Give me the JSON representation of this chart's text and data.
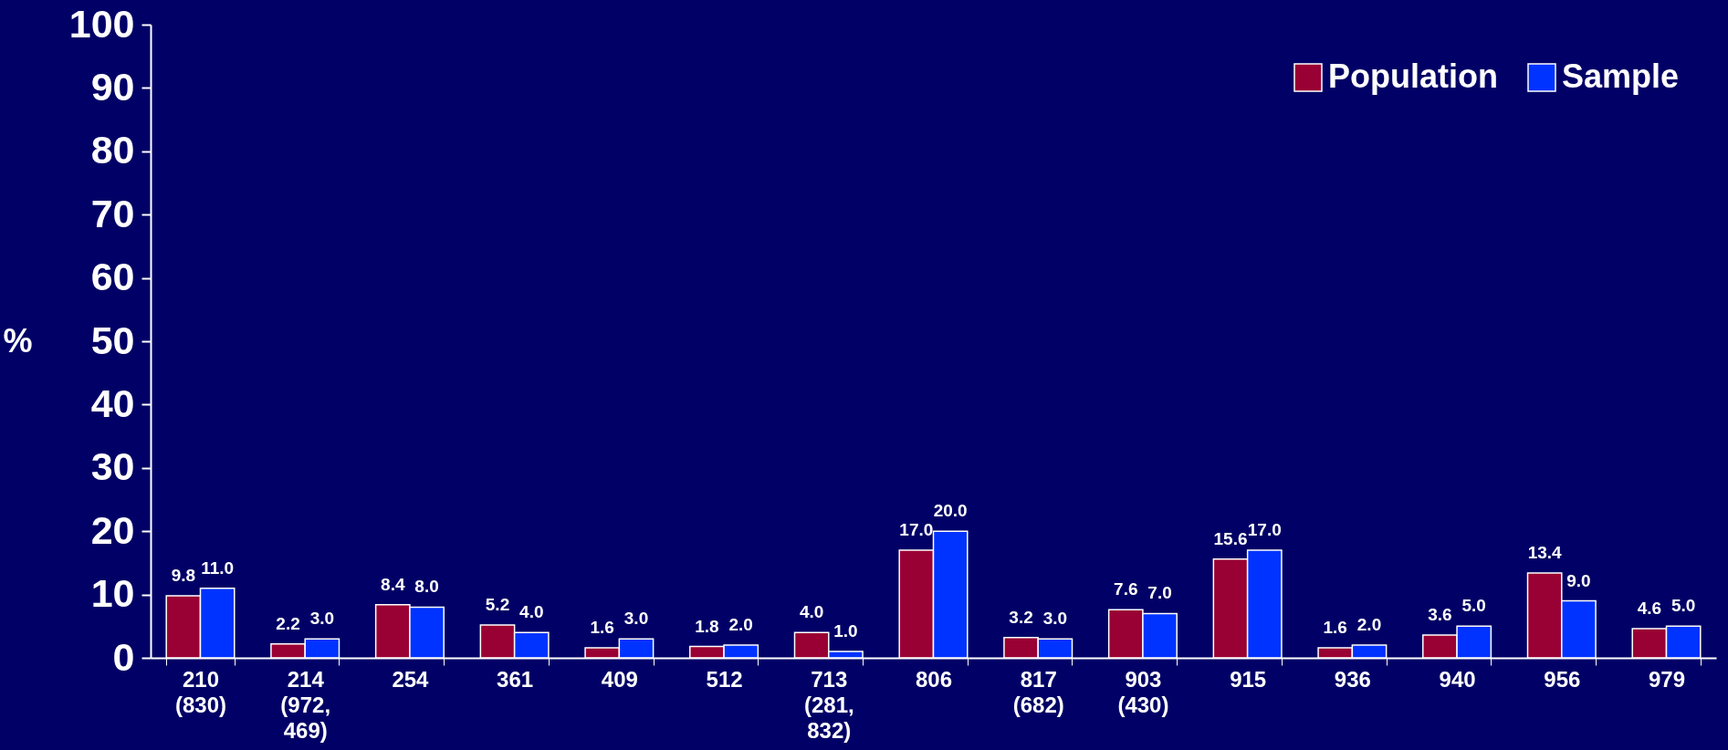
{
  "chart_data": {
    "type": "bar",
    "ylabel": "%",
    "categories": [
      "210\n(830)",
      "214\n(972,\n469)",
      "254",
      "361",
      "409",
      "512",
      "713\n(281,\n832)",
      "806",
      "817\n(682)",
      "903\n(430)",
      "915",
      "936",
      "940",
      "956",
      "979"
    ],
    "series": [
      {
        "name": "Population",
        "color": "#990033",
        "values": [
          9.8,
          2.2,
          8.4,
          5.2,
          1.6,
          1.8,
          4.0,
          17.0,
          3.2,
          7.6,
          15.6,
          1.6,
          3.6,
          13.4,
          4.6
        ],
        "value_labels": [
          "9.8",
          "2.2",
          "8.4",
          "5.2",
          "1.6",
          "1.8",
          "4.0",
          "17.0",
          "3.2",
          "7.6",
          "15.6",
          "1.6",
          "3.6",
          "13.4",
          "4.6"
        ]
      },
      {
        "name": "Sample",
        "color": "#0033ff",
        "values": [
          11.0,
          3.0,
          8.0,
          4.0,
          3.0,
          2.0,
          1.0,
          20.0,
          3.0,
          7.0,
          17.0,
          2.0,
          5.0,
          9.0,
          5.0
        ],
        "value_labels": [
          "11.0",
          "3.0",
          "8.0",
          "4.0",
          "3.0",
          "2.0",
          "1.0",
          "20.0",
          "3.0",
          "7.0",
          "17.0",
          "2.0",
          "5.0",
          "9.0",
          "5.0"
        ]
      }
    ],
    "ylim": [
      0,
      100
    ],
    "yticks": [
      0,
      10,
      20,
      30,
      40,
      50,
      60,
      70,
      80,
      90,
      100
    ],
    "grid": false,
    "legend": "top right"
  }
}
